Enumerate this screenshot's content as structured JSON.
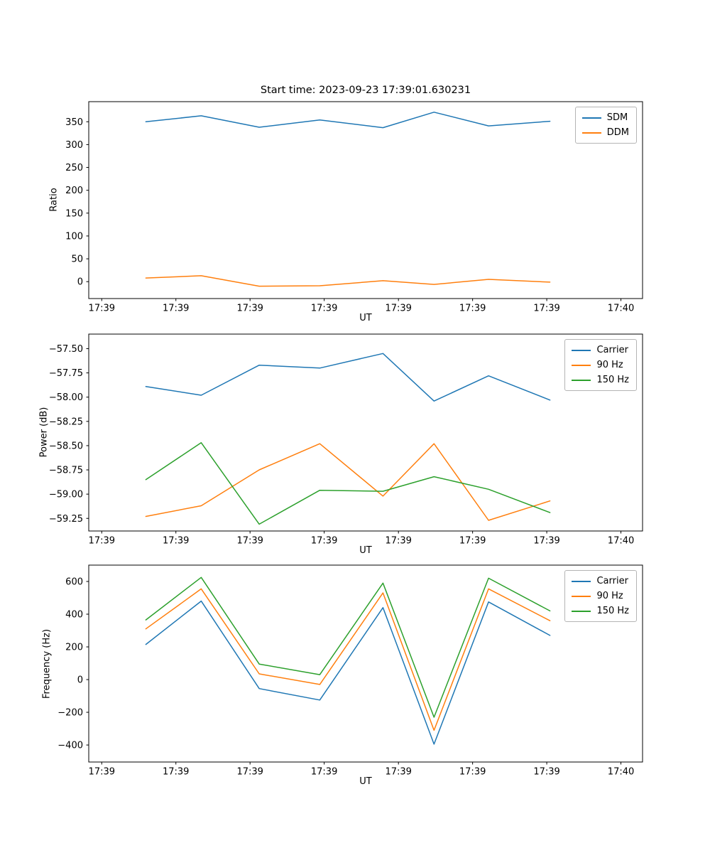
{
  "figure": {
    "title": "Start time: 2023-09-23 17:39:01.630231",
    "background_color": "#ffffff"
  },
  "colors": {
    "blue": "#1f77b4",
    "orange": "#ff7f0e",
    "green": "#2ca02c",
    "axis": "#000000",
    "legend_border": "#b4b4b4"
  },
  "chart_data": [
    {
      "id": "ratio",
      "type": "line",
      "title": "Start time: 2023-09-23 17:39:01.630231",
      "xlabel": "UT",
      "ylabel": "Ratio",
      "grid": false,
      "legend_position": "upper right",
      "xlim": [
        -1.5,
        62.5
      ],
      "ylim": [
        -37,
        394
      ],
      "x": [
        5.1,
        11.5,
        18.2,
        25.2,
        32.5,
        38.4,
        44.7,
        51.8
      ],
      "xticks": {
        "values": [
          0,
          8.57,
          17.14,
          25.71,
          34.29,
          42.86,
          51.43,
          60
        ],
        "labels": [
          "17:39",
          "17:39",
          "17:39",
          "17:39",
          "17:39",
          "17:39",
          "17:39",
          "17:40"
        ]
      },
      "yticks": {
        "values": [
          0,
          50,
          100,
          150,
          200,
          250,
          300,
          350
        ],
        "labels": [
          "0",
          "50",
          "100",
          "150",
          "200",
          "250",
          "300",
          "350"
        ]
      },
      "series": [
        {
          "name": "SDM",
          "color": "#1f77b4",
          "values": [
            350,
            363,
            338,
            354,
            337,
            371,
            341,
            351
          ]
        },
        {
          "name": "DDM",
          "color": "#ff7f0e",
          "values": [
            8,
            13,
            -10,
            -9,
            2,
            -6,
            5,
            -1
          ]
        }
      ]
    },
    {
      "id": "power",
      "type": "line",
      "title": "",
      "xlabel": "UT",
      "ylabel": "Power (dB)",
      "grid": false,
      "legend_position": "upper right",
      "xlim": [
        -1.5,
        62.5
      ],
      "ylim": [
        -59.38,
        -57.35
      ],
      "x": [
        5.1,
        11.5,
        18.2,
        25.2,
        32.5,
        38.4,
        44.7,
        51.8
      ],
      "xticks": {
        "values": [
          0,
          8.57,
          17.14,
          25.71,
          34.29,
          42.86,
          51.43,
          60
        ],
        "labels": [
          "17:39",
          "17:39",
          "17:39",
          "17:39",
          "17:39",
          "17:39",
          "17:39",
          "17:40"
        ]
      },
      "yticks": {
        "values": [
          -59.25,
          -59.0,
          -58.75,
          -58.5,
          -58.25,
          -58.0,
          -57.75,
          -57.5
        ],
        "labels": [
          "−59.25",
          "−59.00",
          "−58.75",
          "−58.50",
          "−58.25",
          "−58.00",
          "−57.75",
          "−57.50"
        ]
      },
      "series": [
        {
          "name": "Carrier",
          "color": "#1f77b4",
          "values": [
            -57.89,
            -57.98,
            -57.67,
            -57.7,
            -57.55,
            -58.04,
            -57.78,
            -58.03
          ]
        },
        {
          "name": "90 Hz",
          "color": "#ff7f0e",
          "values": [
            -59.23,
            -59.12,
            -58.75,
            -58.48,
            -59.02,
            -58.48,
            -59.27,
            -59.07
          ]
        },
        {
          "name": "150 Hz",
          "color": "#2ca02c",
          "values": [
            -58.85,
            -58.47,
            -59.31,
            -58.96,
            -58.97,
            -58.82,
            -58.95,
            -59.19
          ]
        }
      ]
    },
    {
      "id": "frequency",
      "type": "line",
      "title": "",
      "xlabel": "UT",
      "ylabel": "Frequency (Hz)",
      "grid": false,
      "legend_position": "upper right",
      "xlim": [
        -1.5,
        62.5
      ],
      "ylim": [
        -504,
        700
      ],
      "x": [
        5.1,
        11.5,
        18.2,
        25.2,
        32.5,
        38.4,
        44.7,
        51.8
      ],
      "xticks": {
        "values": [
          0,
          8.57,
          17.14,
          25.71,
          34.29,
          42.86,
          51.43,
          60
        ],
        "labels": [
          "17:39",
          "17:39",
          "17:39",
          "17:39",
          "17:39",
          "17:39",
          "17:39",
          "17:40"
        ]
      },
      "yticks": {
        "values": [
          -400,
          -200,
          0,
          200,
          400,
          600
        ],
        "labels": [
          "−400",
          "−200",
          "0",
          "200",
          "400",
          "600"
        ]
      },
      "series": [
        {
          "name": "Carrier",
          "color": "#1f77b4",
          "values": [
            215,
            480,
            -55,
            -125,
            440,
            -395,
            475,
            270
          ]
        },
        {
          "name": "90 Hz",
          "color": "#ff7f0e",
          "values": [
            310,
            555,
            35,
            -30,
            530,
            -310,
            555,
            360
          ]
        },
        {
          "name": "150 Hz",
          "color": "#2ca02c",
          "values": [
            365,
            625,
            95,
            30,
            590,
            -230,
            620,
            420
          ]
        }
      ]
    }
  ]
}
